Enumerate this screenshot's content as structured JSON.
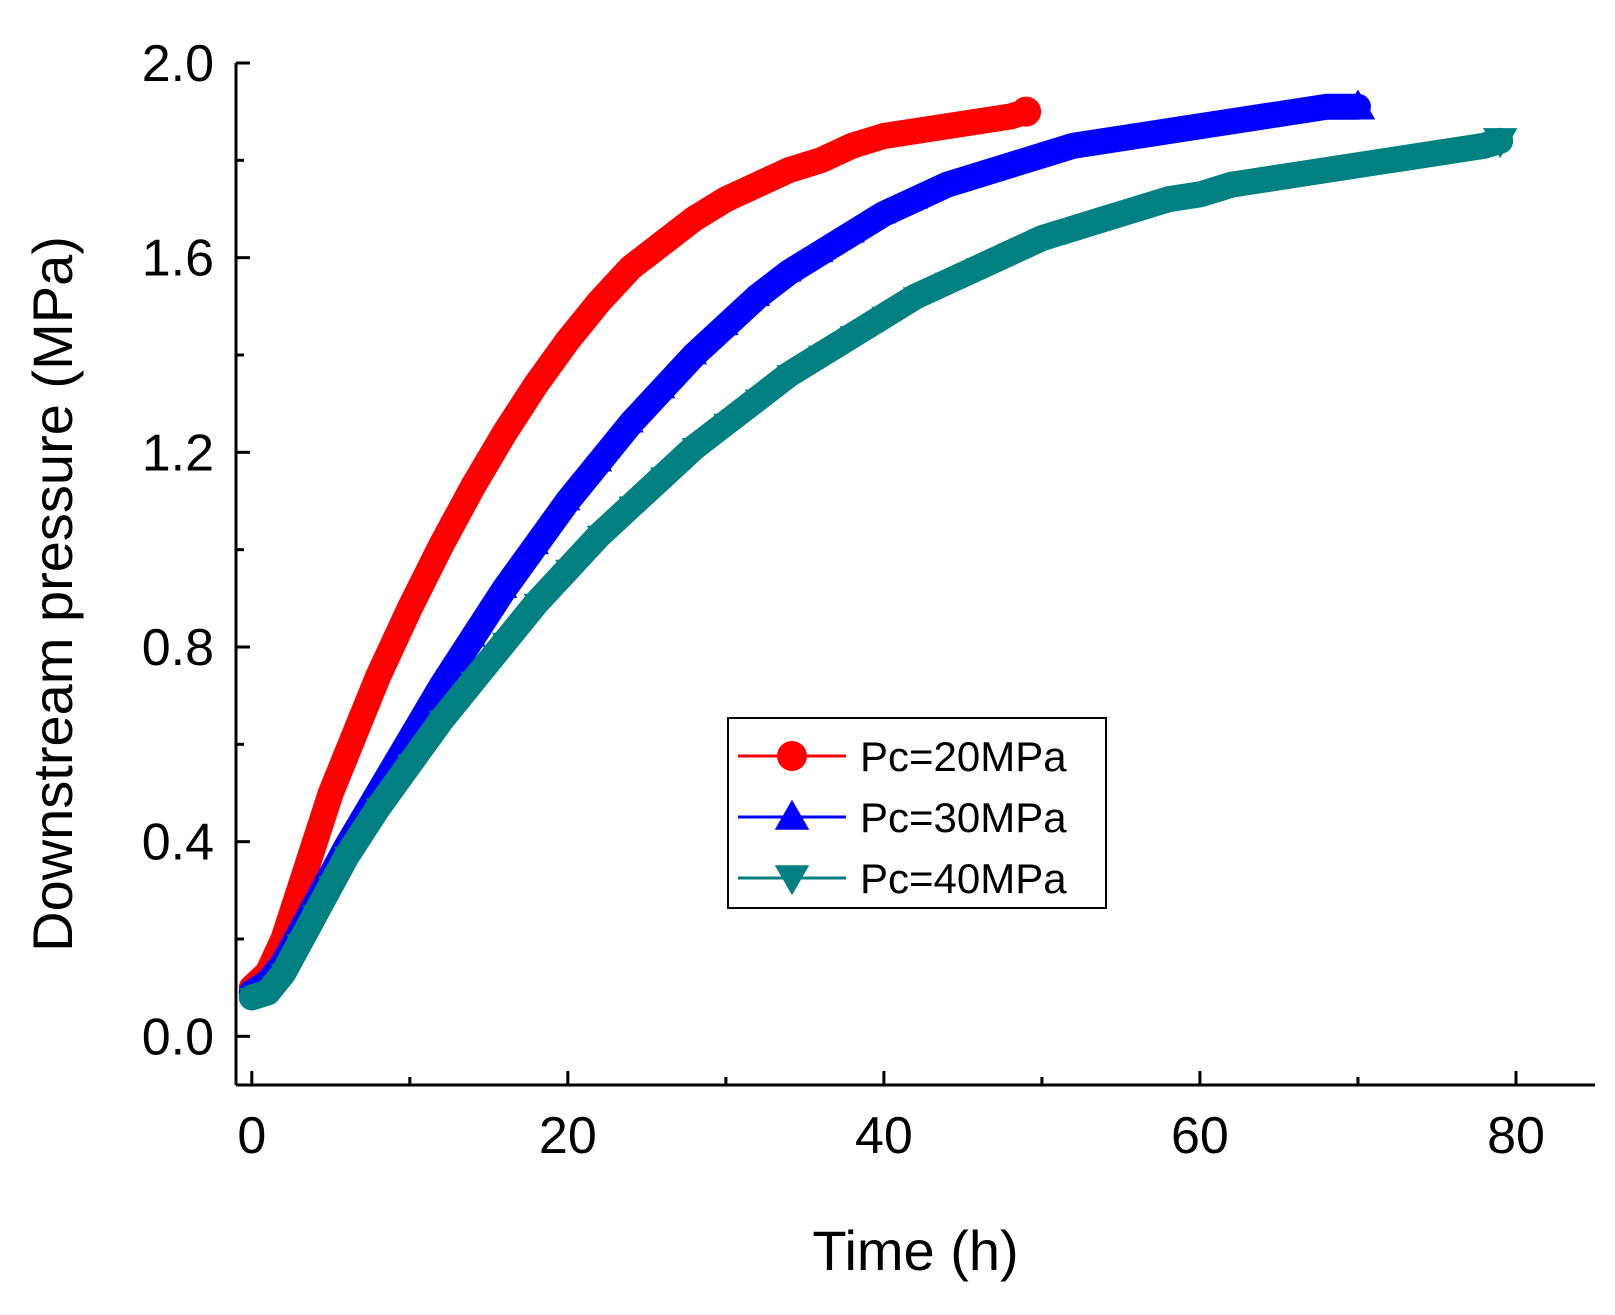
{
  "chart_data": {
    "type": "line",
    "title": "",
    "xlabel": "Time (h)",
    "ylabel": "Downstream pressure (MPa)",
    "xlim": [
      -1,
      85
    ],
    "ylim": [
      -0.1,
      2.0
    ],
    "x_ticks": [
      0,
      20,
      40,
      60,
      80
    ],
    "x_tick_labels": [
      "0",
      "20",
      "40",
      "60",
      "80"
    ],
    "x_minor_ticks": [
      10,
      30,
      50,
      70
    ],
    "y_ticks": [
      0.0,
      0.4,
      0.8,
      1.2,
      1.6,
      2.0
    ],
    "y_tick_labels": [
      "0.0",
      "0.4",
      "0.8",
      "1.2",
      "1.6",
      "2.0"
    ],
    "y_minor_ticks": [
      0.2,
      0.6,
      1.0,
      1.4,
      1.8
    ],
    "legend_position": "center-right",
    "series": [
      {
        "name": "Pc=20MPa",
        "color": "#ff0000",
        "marker": "circle",
        "x": [
          0,
          1,
          2,
          3,
          4,
          5,
          6,
          8,
          10,
          12,
          14,
          16,
          18,
          20,
          22,
          24,
          26,
          28,
          30,
          32,
          34,
          36,
          38,
          40,
          42,
          44,
          46,
          48,
          49
        ],
        "y": [
          0.1,
          0.13,
          0.2,
          0.3,
          0.4,
          0.5,
          0.58,
          0.74,
          0.88,
          1.01,
          1.13,
          1.24,
          1.34,
          1.43,
          1.51,
          1.58,
          1.63,
          1.68,
          1.72,
          1.75,
          1.78,
          1.8,
          1.83,
          1.85,
          1.86,
          1.87,
          1.88,
          1.89,
          1.9
        ]
      },
      {
        "name": "Pc=30MPa",
        "color": "#0000ff",
        "marker": "triangle-up",
        "x": [
          0,
          1,
          2,
          3,
          4,
          5,
          6,
          8,
          10,
          12,
          14,
          16,
          18,
          20,
          22,
          24,
          26,
          28,
          30,
          32,
          34,
          36,
          38,
          40,
          42,
          44,
          46,
          48,
          50,
          52,
          54,
          56,
          58,
          60,
          62,
          64,
          66,
          68,
          70
        ],
        "y": [
          0.09,
          0.11,
          0.15,
          0.21,
          0.27,
          0.33,
          0.39,
          0.5,
          0.61,
          0.72,
          0.82,
          0.92,
          1.01,
          1.1,
          1.18,
          1.26,
          1.33,
          1.4,
          1.46,
          1.52,
          1.57,
          1.61,
          1.65,
          1.69,
          1.72,
          1.75,
          1.77,
          1.79,
          1.81,
          1.83,
          1.84,
          1.85,
          1.86,
          1.87,
          1.88,
          1.89,
          1.9,
          1.91,
          1.91
        ]
      },
      {
        "name": "Pc=40MPa",
        "color": "#008080",
        "marker": "triangle-down",
        "x": [
          0,
          1,
          2,
          3,
          4,
          5,
          6,
          8,
          10,
          12,
          14,
          16,
          18,
          20,
          22,
          24,
          26,
          28,
          30,
          32,
          34,
          36,
          38,
          40,
          42,
          44,
          46,
          48,
          50,
          52,
          54,
          56,
          58,
          60,
          62,
          64,
          66,
          68,
          70,
          72,
          74,
          76,
          78,
          79
        ],
        "y": [
          0.08,
          0.09,
          0.13,
          0.19,
          0.25,
          0.31,
          0.37,
          0.47,
          0.56,
          0.65,
          0.73,
          0.81,
          0.89,
          0.96,
          1.03,
          1.09,
          1.15,
          1.21,
          1.26,
          1.31,
          1.36,
          1.4,
          1.44,
          1.48,
          1.52,
          1.55,
          1.58,
          1.61,
          1.64,
          1.66,
          1.68,
          1.7,
          1.72,
          1.73,
          1.75,
          1.76,
          1.77,
          1.78,
          1.79,
          1.8,
          1.81,
          1.82,
          1.83,
          1.84
        ]
      }
    ]
  }
}
